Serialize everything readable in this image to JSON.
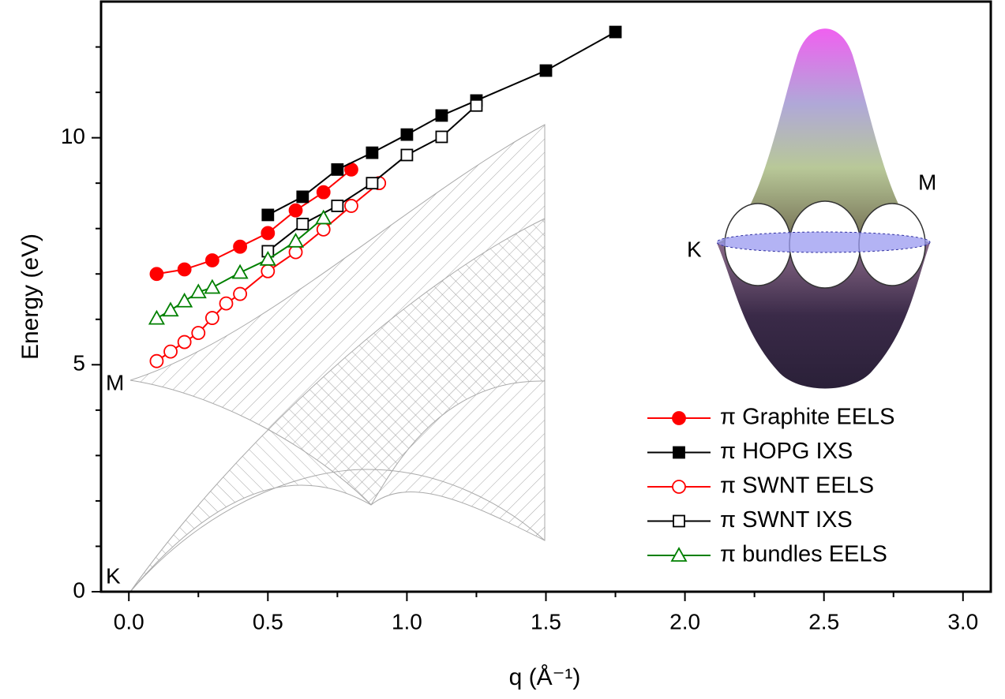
{
  "chart_data": {
    "type": "line",
    "xlabel": "q (Å⁻¹)",
    "ylabel": "Energy (eV)",
    "xlim": [
      -0.1,
      3.1
    ],
    "ylim": [
      0,
      13
    ],
    "xticks": [
      {
        "value": 0,
        "label": "0.0"
      },
      0.5,
      {
        "value": 1,
        "label": "1.0"
      },
      1.5,
      {
        "value": 2,
        "label": "2.0"
      },
      2.5,
      {
        "value": 3,
        "label": "3.0"
      }
    ],
    "xminorticks": [
      0.25,
      0.75,
      1.25,
      1.75,
      2.25,
      2.75
    ],
    "yticks": [
      0,
      5,
      10
    ],
    "yminorticks": [
      1,
      2,
      3,
      4,
      6,
      7,
      8,
      9,
      11,
      12
    ],
    "legend": "lower right",
    "annotations": [
      "M",
      "K",
      "M",
      "K"
    ],
    "series": [
      {
        "name": "π Graphite EELS",
        "color": "#ff0000",
        "marker": "circle",
        "filled": true,
        "x": [
          0.1,
          0.2,
          0.3,
          0.4,
          0.5,
          0.6,
          0.7,
          0.8
        ],
        "values": [
          7.0,
          7.1,
          7.3,
          7.6,
          7.9,
          8.4,
          8.8,
          9.3
        ]
      },
      {
        "name": "π HOPG IXS",
        "color": "#000000",
        "marker": "square",
        "filled": true,
        "x": [
          0.5,
          0.625,
          0.75,
          0.875,
          1.0,
          1.125,
          1.25,
          1.5,
          1.75
        ],
        "values": [
          8.3,
          8.7,
          9.3,
          9.67,
          10.07,
          10.49,
          10.82,
          11.48,
          12.33
        ]
      },
      {
        "name": "π SWNT EELS",
        "color": "#ff0000",
        "marker": "circle",
        "filled": false,
        "x": [
          0.1,
          0.15,
          0.2,
          0.25,
          0.3,
          0.35,
          0.4,
          0.5,
          0.6,
          0.7,
          0.8,
          0.9
        ],
        "values": [
          5.08,
          5.29,
          5.5,
          5.7,
          6.03,
          6.35,
          6.56,
          7.06,
          7.48,
          7.98,
          8.5,
          9.0
        ]
      },
      {
        "name": "π SWNT IXS",
        "color": "#000000",
        "marker": "square",
        "filled": false,
        "x": [
          0.5,
          0.625,
          0.75,
          0.875,
          1.0,
          1.125,
          1.25
        ],
        "values": [
          7.5,
          8.1,
          8.5,
          9.0,
          9.62,
          10.02,
          10.71
        ]
      },
      {
        "name": "π bundles EELS",
        "color": "#008000",
        "marker": "triangle",
        "filled": false,
        "x": [
          0.1,
          0.15,
          0.2,
          0.25,
          0.3,
          0.4,
          0.5,
          0.6,
          0.7
        ],
        "values": [
          6.02,
          6.2,
          6.4,
          6.6,
          6.7,
          7.03,
          7.32,
          7.72,
          8.23
        ]
      }
    ]
  }
}
